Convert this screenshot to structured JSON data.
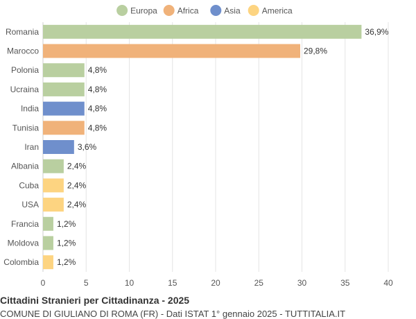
{
  "chart_data": {
    "type": "bar",
    "orientation": "horizontal",
    "title": "Cittadini Stranieri per Cittadinanza - 2025",
    "subtitle": "COMUNE DI GIULIANO DI ROMA (FR) - Dati ISTAT 1° gennaio 2025 - TUTTITALIA.IT",
    "legend": {
      "placement": "top",
      "entries": [
        {
          "name": "Europa",
          "color": "#b9cfa0"
        },
        {
          "name": "Africa",
          "color": "#f0b27a"
        },
        {
          "name": "Asia",
          "color": "#6f8fcc"
        },
        {
          "name": "America",
          "color": "#fdd481"
        }
      ]
    },
    "categories": [
      "Romania",
      "Marocco",
      "Polonia",
      "Ucraina",
      "India",
      "Tunisia",
      "Iran",
      "Albania",
      "Cuba",
      "USA",
      "Francia",
      "Moldova",
      "Colombia"
    ],
    "values": [
      36.9,
      29.8,
      4.8,
      4.8,
      4.8,
      4.8,
      3.6,
      2.4,
      2.4,
      2.4,
      1.2,
      1.2,
      1.2
    ],
    "value_labels": [
      "36,9%",
      "29,8%",
      "4,8%",
      "4,8%",
      "4,8%",
      "4,8%",
      "3,6%",
      "2,4%",
      "2,4%",
      "2,4%",
      "1,2%",
      "1,2%",
      "1,2%"
    ],
    "groups": [
      "Europa",
      "Africa",
      "Europa",
      "Europa",
      "Asia",
      "Africa",
      "Asia",
      "Europa",
      "America",
      "America",
      "Europa",
      "Europa",
      "America"
    ],
    "xlim": [
      0,
      40
    ],
    "xticks": [
      0,
      5,
      10,
      15,
      20,
      25,
      30,
      35,
      40
    ],
    "grid": "vertical"
  }
}
